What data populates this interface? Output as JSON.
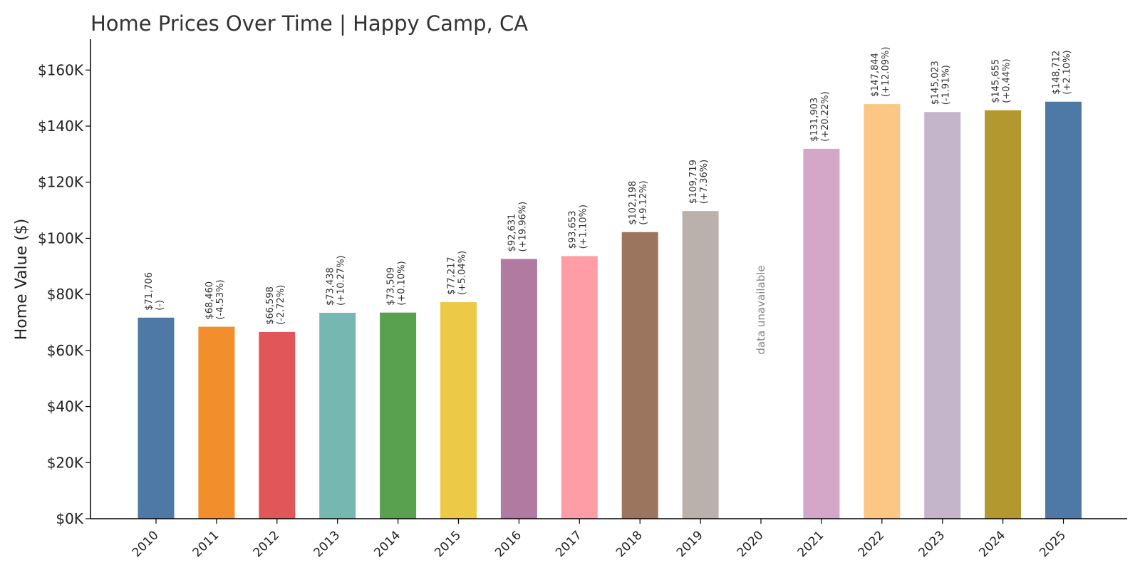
{
  "chart_data": {
    "type": "bar",
    "title": "Home Prices Over Time | Happy Camp, CA",
    "ylabel": "Home Value ($)",
    "xlabel": "",
    "ylim": [
      0,
      171000
    ],
    "yticks": [
      {
        "value": 0,
        "label": "$0K"
      },
      {
        "value": 20000,
        "label": "$20K"
      },
      {
        "value": 40000,
        "label": "$40K"
      },
      {
        "value": 60000,
        "label": "$60K"
      },
      {
        "value": 80000,
        "label": "$80K"
      },
      {
        "value": 100000,
        "label": "$100K"
      },
      {
        "value": 120000,
        "label": "$120K"
      },
      {
        "value": 140000,
        "label": "$140K"
      },
      {
        "value": 160000,
        "label": "$160K"
      }
    ],
    "grid": false,
    "missing_label": "data unavailable",
    "bars": [
      {
        "category": "2010",
        "value": 71706,
        "label": "$71,706",
        "change": "(-)",
        "color": "#4e79a7"
      },
      {
        "category": "2011",
        "value": 68460,
        "label": "$68,460",
        "change": "(-4.53%)",
        "color": "#f28e2b"
      },
      {
        "category": "2012",
        "value": 66598,
        "label": "$66,598",
        "change": "(-2.72%)",
        "color": "#e15759"
      },
      {
        "category": "2013",
        "value": 73438,
        "label": "$73,438",
        "change": "(+10.27%)",
        "color": "#76b7b2"
      },
      {
        "category": "2014",
        "value": 73509,
        "label": "$73,509",
        "change": "(+0.10%)",
        "color": "#59a14f"
      },
      {
        "category": "2015",
        "value": 77217,
        "label": "$77,217",
        "change": "(+5.04%)",
        "color": "#edc948"
      },
      {
        "category": "2016",
        "value": 92631,
        "label": "$92,631",
        "change": "(+19.96%)",
        "color": "#b07aa1"
      },
      {
        "category": "2017",
        "value": 93653,
        "label": "$93,653",
        "change": "(+1.10%)",
        "color": "#ff9da7"
      },
      {
        "category": "2018",
        "value": 102198,
        "label": "$102,198",
        "change": "(+9.12%)",
        "color": "#9c755f"
      },
      {
        "category": "2019",
        "value": 109719,
        "label": "$109,719",
        "change": "(+7.36%)",
        "color": "#bab0ac"
      },
      {
        "category": "2020",
        "value": null,
        "label": "",
        "change": "",
        "color": ""
      },
      {
        "category": "2021",
        "value": 131903,
        "label": "$131,903",
        "change": "(+20.22%)",
        "color": "#d4a6c8"
      },
      {
        "category": "2022",
        "value": 147844,
        "label": "$147,844",
        "change": "(+12.09%)",
        "color": "#fcc784"
      },
      {
        "category": "2023",
        "value": 145023,
        "label": "$145,023",
        "change": "(-1.91%)",
        "color": "#c4b5cb"
      },
      {
        "category": "2024",
        "value": 145655,
        "label": "$145,655",
        "change": "(+0.44%)",
        "color": "#b2982f"
      },
      {
        "category": "2025",
        "value": 148712,
        "label": "$148,712",
        "change": "(+2.10%)",
        "color": "#4e79a7"
      }
    ]
  }
}
